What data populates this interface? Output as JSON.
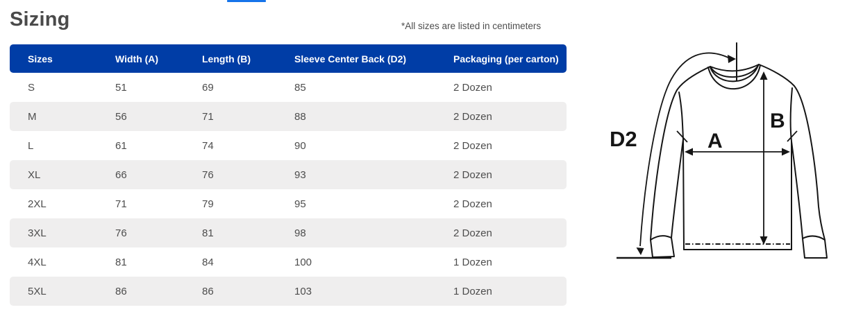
{
  "page": {
    "title": "Sizing",
    "note": "*All sizes are listed in centimeters"
  },
  "tab_indicator": {
    "color": "#1674EA"
  },
  "table": {
    "header_bg": "#003DA6",
    "stripe_bg": "#EFEEEE",
    "columns": [
      "Sizes",
      "Width (A)",
      "Length (B)",
      "Sleeve Center Back (D2)",
      "Packaging (per carton)"
    ],
    "rows": [
      [
        "S",
        "51",
        "69",
        "85",
        "2 Dozen"
      ],
      [
        "M",
        "56",
        "71",
        "88",
        "2 Dozen"
      ],
      [
        "L",
        "61",
        "74",
        "90",
        "2 Dozen"
      ],
      [
        "XL",
        "66",
        "76",
        "93",
        "2 Dozen"
      ],
      [
        "2XL",
        "71",
        "79",
        "95",
        "2 Dozen"
      ],
      [
        "3XL",
        "76",
        "81",
        "98",
        "2 Dozen"
      ],
      [
        "4XL",
        "81",
        "84",
        "100",
        "1 Dozen"
      ],
      [
        "5XL",
        "86",
        "86",
        "103",
        "1 Dozen"
      ]
    ]
  },
  "diagram": {
    "labels": {
      "d2": "D2",
      "a": "A",
      "b": "B"
    },
    "line_color": "#151515"
  }
}
